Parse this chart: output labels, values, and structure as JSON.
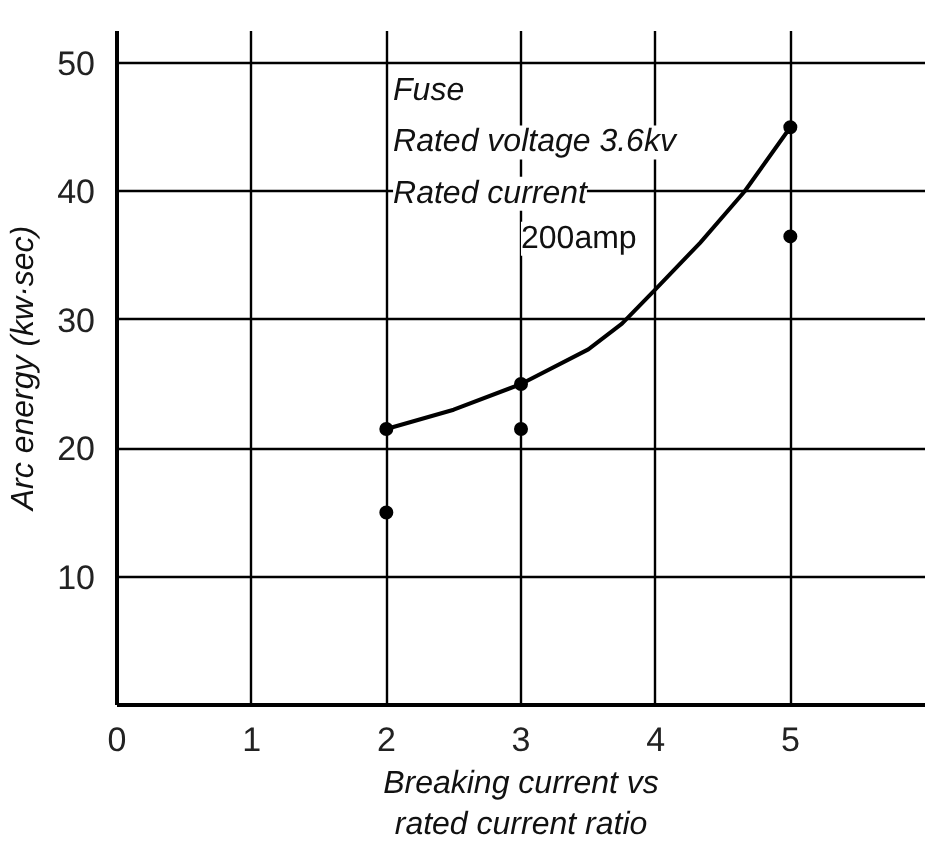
{
  "chart_data": {
    "type": "scatter",
    "xlabel": "Breaking current vs\nrated current ratio",
    "ylabel": "Arc energy (kw·sec)",
    "annotations": [
      "Fuse",
      "Rated voltage 3.6kv",
      "Rated current",
      "200amp"
    ],
    "series": [
      {
        "color": "#000000",
        "x": [
          2,
          2,
          3,
          3,
          5,
          5
        ],
        "values": [
          21.5,
          15,
          25,
          21.5,
          45,
          36.5
        ],
        "marker": "circle"
      },
      {
        "type": "line",
        "color": "#000000",
        "x": [
          2,
          2.5,
          3,
          3.5,
          3.75,
          4,
          4.33,
          4.66,
          5
        ],
        "values": [
          21.5,
          23,
          25,
          27.7,
          29.7,
          32.4,
          36,
          40,
          45
        ],
        "marker": "none",
        "line_style": "solid"
      }
    ],
    "xlim": [
      0,
      6
    ],
    "ylim": [
      0,
      52.5
    ],
    "xticks": [
      0,
      1,
      2,
      3,
      4,
      5
    ],
    "yticks": [
      10,
      20,
      30,
      40,
      50
    ],
    "grid": true
  }
}
